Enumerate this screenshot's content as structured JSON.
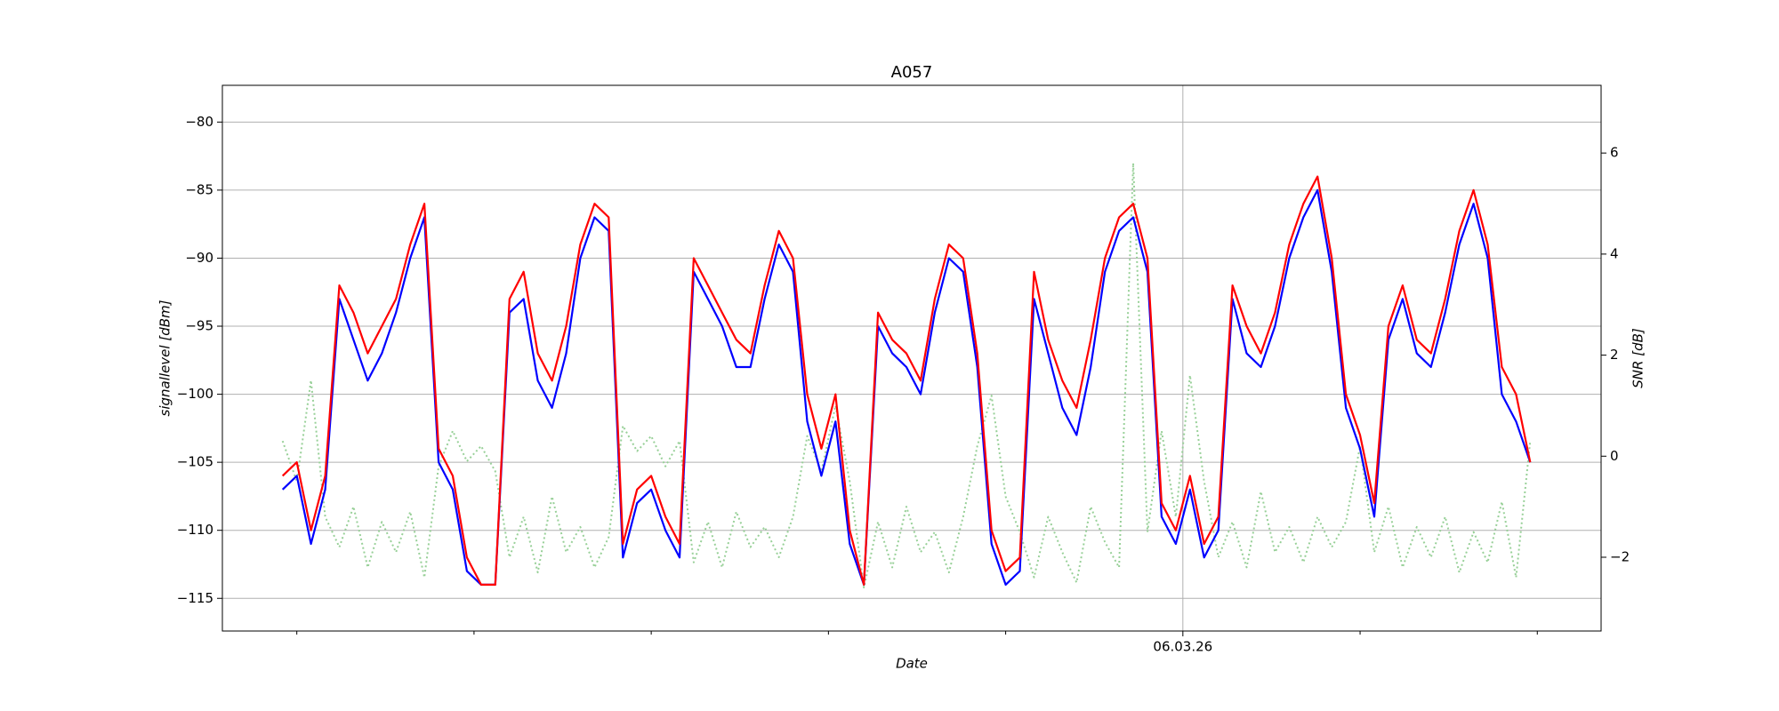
{
  "chart_data": {
    "type": "line",
    "title": "A057",
    "xlabel": "Date",
    "ylabel": "signallevel [dBm]",
    "y2label": "SNR [dB]",
    "x": [
      -5.08,
      -5.0,
      -4.92,
      -4.84,
      -4.76,
      -4.68,
      -4.6,
      -4.52,
      -4.44,
      -4.36,
      -4.28,
      -4.2,
      -4.12,
      -4.04,
      -3.96,
      -3.88,
      -3.8,
      -3.72,
      -3.64,
      -3.56,
      -3.48,
      -3.4,
      -3.32,
      -3.24,
      -3.16,
      -3.08,
      -3.0,
      -2.92,
      -2.84,
      -2.76,
      -2.68,
      -2.6,
      -2.52,
      -2.44,
      -2.36,
      -2.28,
      -2.2,
      -2.12,
      -2.04,
      -1.96,
      -1.88,
      -1.8,
      -1.72,
      -1.64,
      -1.56,
      -1.48,
      -1.4,
      -1.32,
      -1.24,
      -1.16,
      -1.08,
      -1.0,
      -0.92,
      -0.84,
      -0.76,
      -0.68,
      -0.6,
      -0.52,
      -0.44,
      -0.36,
      -0.28,
      -0.2,
      -0.12,
      -0.04,
      0.04,
      0.12,
      0.2,
      0.28,
      0.36,
      0.44,
      0.52,
      0.6,
      0.68,
      0.76,
      0.84,
      0.92,
      1.0,
      1.08,
      1.16,
      1.24,
      1.32,
      1.4,
      1.48,
      1.56,
      1.64,
      1.72,
      1.8,
      1.88,
      1.96
    ],
    "series": [
      {
        "color": "#98d098",
        "axis": "y2",
        "dash": true,
        "values": [
          0.3,
          -0.5,
          1.5,
          -1.2,
          -1.8,
          -1.0,
          -2.2,
          -1.3,
          -1.9,
          -1.1,
          -2.4,
          -0.2,
          0.5,
          -0.1,
          0.2,
          -0.3,
          -2.0,
          -1.2,
          -2.3,
          -0.8,
          -1.9,
          -1.4,
          -2.2,
          -1.6,
          0.6,
          0.1,
          0.4,
          -0.2,
          0.3,
          -2.1,
          -1.3,
          -2.2,
          -1.1,
          -1.8,
          -1.4,
          -2.0,
          -1.2,
          0.4,
          -0.3,
          1.0,
          -0.5,
          -2.6,
          -1.3,
          -2.2,
          -1.0,
          -1.9,
          -1.5,
          -2.3,
          -1.2,
          0.2,
          1.2,
          -0.8,
          -1.5,
          -2.4,
          -1.2,
          -1.9,
          -2.5,
          -1.0,
          -1.7,
          -2.2,
          5.8,
          -1.5,
          0.5,
          -1.2,
          1.6,
          -0.5,
          -2.0,
          -1.3,
          -2.2,
          -0.7,
          -1.9,
          -1.4,
          -2.1,
          -1.2,
          -1.8,
          -1.3,
          0.2,
          -1.9,
          -1.0,
          -2.2,
          -1.4,
          -2.0,
          -1.2,
          -2.3,
          -1.5,
          -2.1,
          -0.9,
          -2.4,
          0.3
        ]
      },
      {
        "color": "#0000ff",
        "values": [
          -107,
          -106,
          -111,
          -107,
          -93,
          -96,
          -99,
          -97,
          -94,
          -90,
          -87,
          -105,
          -107,
          -113,
          -114,
          -114,
          -94,
          -93,
          -99,
          -101,
          -97,
          -90,
          -87,
          -88,
          -112,
          -108,
          -107,
          -110,
          -112,
          -91,
          -93,
          -95,
          -98,
          -98,
          -93,
          -89,
          -91,
          -102,
          -106,
          -102,
          -111,
          -114,
          -95,
          -97,
          -98,
          -100,
          -94,
          -90,
          -91,
          -98,
          -111,
          -114,
          -113,
          -93,
          -97,
          -101,
          -103,
          -98,
          -91,
          -88,
          -87,
          -91,
          -109,
          -111,
          -107,
          -112,
          -110,
          -93,
          -97,
          -98,
          -95,
          -90,
          -87,
          -85,
          -91,
          -101,
          -104,
          -109,
          -96,
          -93,
          -97,
          -98,
          -94,
          -89,
          -86,
          -90,
          -100,
          -102,
          -105
        ]
      },
      {
        "color": "#ff0000",
        "values": [
          -106,
          -105,
          -110,
          -106,
          -92,
          -94,
          -97,
          -95,
          -93,
          -89,
          -86,
          -104,
          -106,
          -112,
          -114,
          -114,
          -93,
          -91,
          -97,
          -99,
          -95,
          -89,
          -86,
          -87,
          -111,
          -107,
          -106,
          -109,
          -111,
          -90,
          -92,
          -94,
          -96,
          -97,
          -92,
          -88,
          -90,
          -100,
          -104,
          -100,
          -110,
          -114,
          -94,
          -96,
          -97,
          -99,
          -93,
          -89,
          -90,
          -97,
          -110,
          -113,
          -112,
          -91,
          -96,
          -99,
          -101,
          -96,
          -90,
          -87,
          -86,
          -90,
          -108,
          -110,
          -106,
          -111,
          -109,
          -92,
          -95,
          -97,
          -94,
          -89,
          -86,
          -84,
          -90,
          -100,
          -103,
          -108,
          -95,
          -92,
          -96,
          -97,
          -93,
          -88,
          -85,
          -89,
          -98,
          -100,
          -105
        ]
      }
    ],
    "xlim": [
      -5.42,
      2.36
    ],
    "xticks": [
      {
        "value": 0,
        "label": "06.03.26"
      }
    ],
    "xminorticks": [
      -5,
      -4,
      -3,
      -2,
      -1,
      1,
      2
    ],
    "ylim": [
      -117.4,
      -77.3
    ],
    "yticks": [
      {
        "value": -80,
        "label": "−80"
      },
      {
        "value": -85,
        "label": "−85"
      },
      {
        "value": -90,
        "label": "−90"
      },
      {
        "value": -95,
        "label": "−95"
      },
      {
        "value": -100,
        "label": "−100"
      },
      {
        "value": -105,
        "label": "−105"
      },
      {
        "value": -110,
        "label": "−110"
      },
      {
        "value": -115,
        "label": "−115"
      }
    ],
    "y2lim": [
      -3.46,
      7.34
    ],
    "y2ticks": [
      6,
      4,
      2,
      0,
      {
        "value": -2,
        "label": "−2"
      }
    ],
    "grid": true
  }
}
